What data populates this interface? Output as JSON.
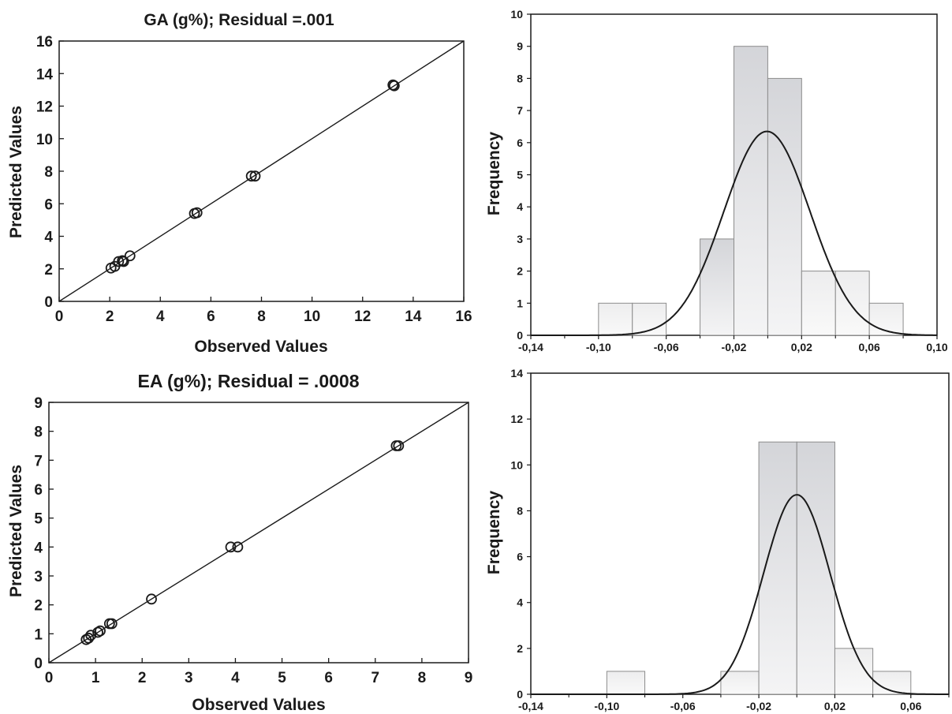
{
  "chart_data": [
    {
      "type": "scatter",
      "title": "GA (g%); Residual =.001",
      "xlabel": "Observed Values",
      "ylabel": "Predicted Values",
      "xlim": [
        0,
        16
      ],
      "ylim": [
        0,
        16
      ],
      "xticks": [
        "0",
        "2",
        "4",
        "6",
        "8",
        "10",
        "12",
        "14",
        "16"
      ],
      "yticks": [
        "0",
        "2",
        "4",
        "6",
        "8",
        "10",
        "12",
        "14",
        "16"
      ],
      "reference_line": "y = x",
      "grid": false,
      "points": [
        {
          "x": 2.05,
          "y": 2.05
        },
        {
          "x": 2.2,
          "y": 2.15
        },
        {
          "x": 2.35,
          "y": 2.45
        },
        {
          "x": 2.5,
          "y": 2.5
        },
        {
          "x": 2.55,
          "y": 2.45
        },
        {
          "x": 2.8,
          "y": 2.8
        },
        {
          "x": 5.35,
          "y": 5.4
        },
        {
          "x": 5.45,
          "y": 5.45
        },
        {
          "x": 7.6,
          "y": 7.7
        },
        {
          "x": 7.75,
          "y": 7.7
        },
        {
          "x": 13.2,
          "y": 13.3
        },
        {
          "x": 13.25,
          "y": 13.25
        }
      ]
    },
    {
      "type": "bar",
      "subtype": "histogram",
      "ylabel": "Frequency",
      "xlim": [
        -0.14,
        0.1
      ],
      "ylim": [
        0,
        10
      ],
      "xticks": [
        "-0,14",
        "-0,10",
        "-0,06",
        "-0,02",
        "0,02",
        "0,06",
        "0,10"
      ],
      "yticks": [
        "0",
        "1",
        "2",
        "3",
        "4",
        "5",
        "6",
        "7",
        "8",
        "9",
        "10"
      ],
      "bin_edges": [
        -0.1,
        -0.08,
        -0.06,
        -0.04,
        -0.02,
        0.0,
        0.02,
        0.04,
        0.06,
        0.08
      ],
      "values": [
        1,
        1,
        0,
        3,
        9,
        8,
        2,
        2,
        1
      ],
      "normal_curve": {
        "mean": -0.0005,
        "peak": 6.35,
        "sd": 0.0255
      }
    },
    {
      "type": "scatter",
      "title": "EA (g%); Residual = .0008",
      "xlabel": "Observed Values",
      "ylabel": "Predicted Values",
      "xlim": [
        0,
        9
      ],
      "ylim": [
        0,
        9
      ],
      "xticks": [
        "0",
        "1",
        "2",
        "3",
        "4",
        "5",
        "6",
        "7",
        "8",
        "9"
      ],
      "yticks": [
        "0",
        "1",
        "2",
        "3",
        "4",
        "5",
        "6",
        "7",
        "8",
        "9"
      ],
      "reference_line": "y = x",
      "grid": false,
      "points": [
        {
          "x": 0.8,
          "y": 0.8
        },
        {
          "x": 0.85,
          "y": 0.85
        },
        {
          "x": 0.9,
          "y": 0.95
        },
        {
          "x": 1.05,
          "y": 1.05
        },
        {
          "x": 1.1,
          "y": 1.1
        },
        {
          "x": 1.3,
          "y": 1.35
        },
        {
          "x": 1.35,
          "y": 1.35
        },
        {
          "x": 2.2,
          "y": 2.2
        },
        {
          "x": 3.9,
          "y": 4.0
        },
        {
          "x": 4.05,
          "y": 4.0
        },
        {
          "x": 7.45,
          "y": 7.5
        },
        {
          "x": 7.5,
          "y": 7.5
        }
      ]
    },
    {
      "type": "bar",
      "subtype": "histogram",
      "ylabel": "Frequency",
      "xlim": [
        -0.14,
        0.08
      ],
      "ylim": [
        0,
        14
      ],
      "xticks": [
        "-0,14",
        "-0,10",
        "-0,06",
        "-0,02",
        "0,02",
        "0,06"
      ],
      "yticks": [
        "0",
        "2",
        "4",
        "6",
        "8",
        "10",
        "12",
        "14"
      ],
      "bin_edges": [
        -0.1,
        -0.08,
        -0.06,
        -0.04,
        -0.02,
        0.0,
        0.02,
        0.04,
        0.06
      ],
      "values": [
        1,
        0,
        0,
        1,
        11,
        11,
        2,
        1
      ],
      "normal_curve": {
        "mean": 0.0,
        "peak": 8.7,
        "sd": 0.0175
      }
    }
  ]
}
